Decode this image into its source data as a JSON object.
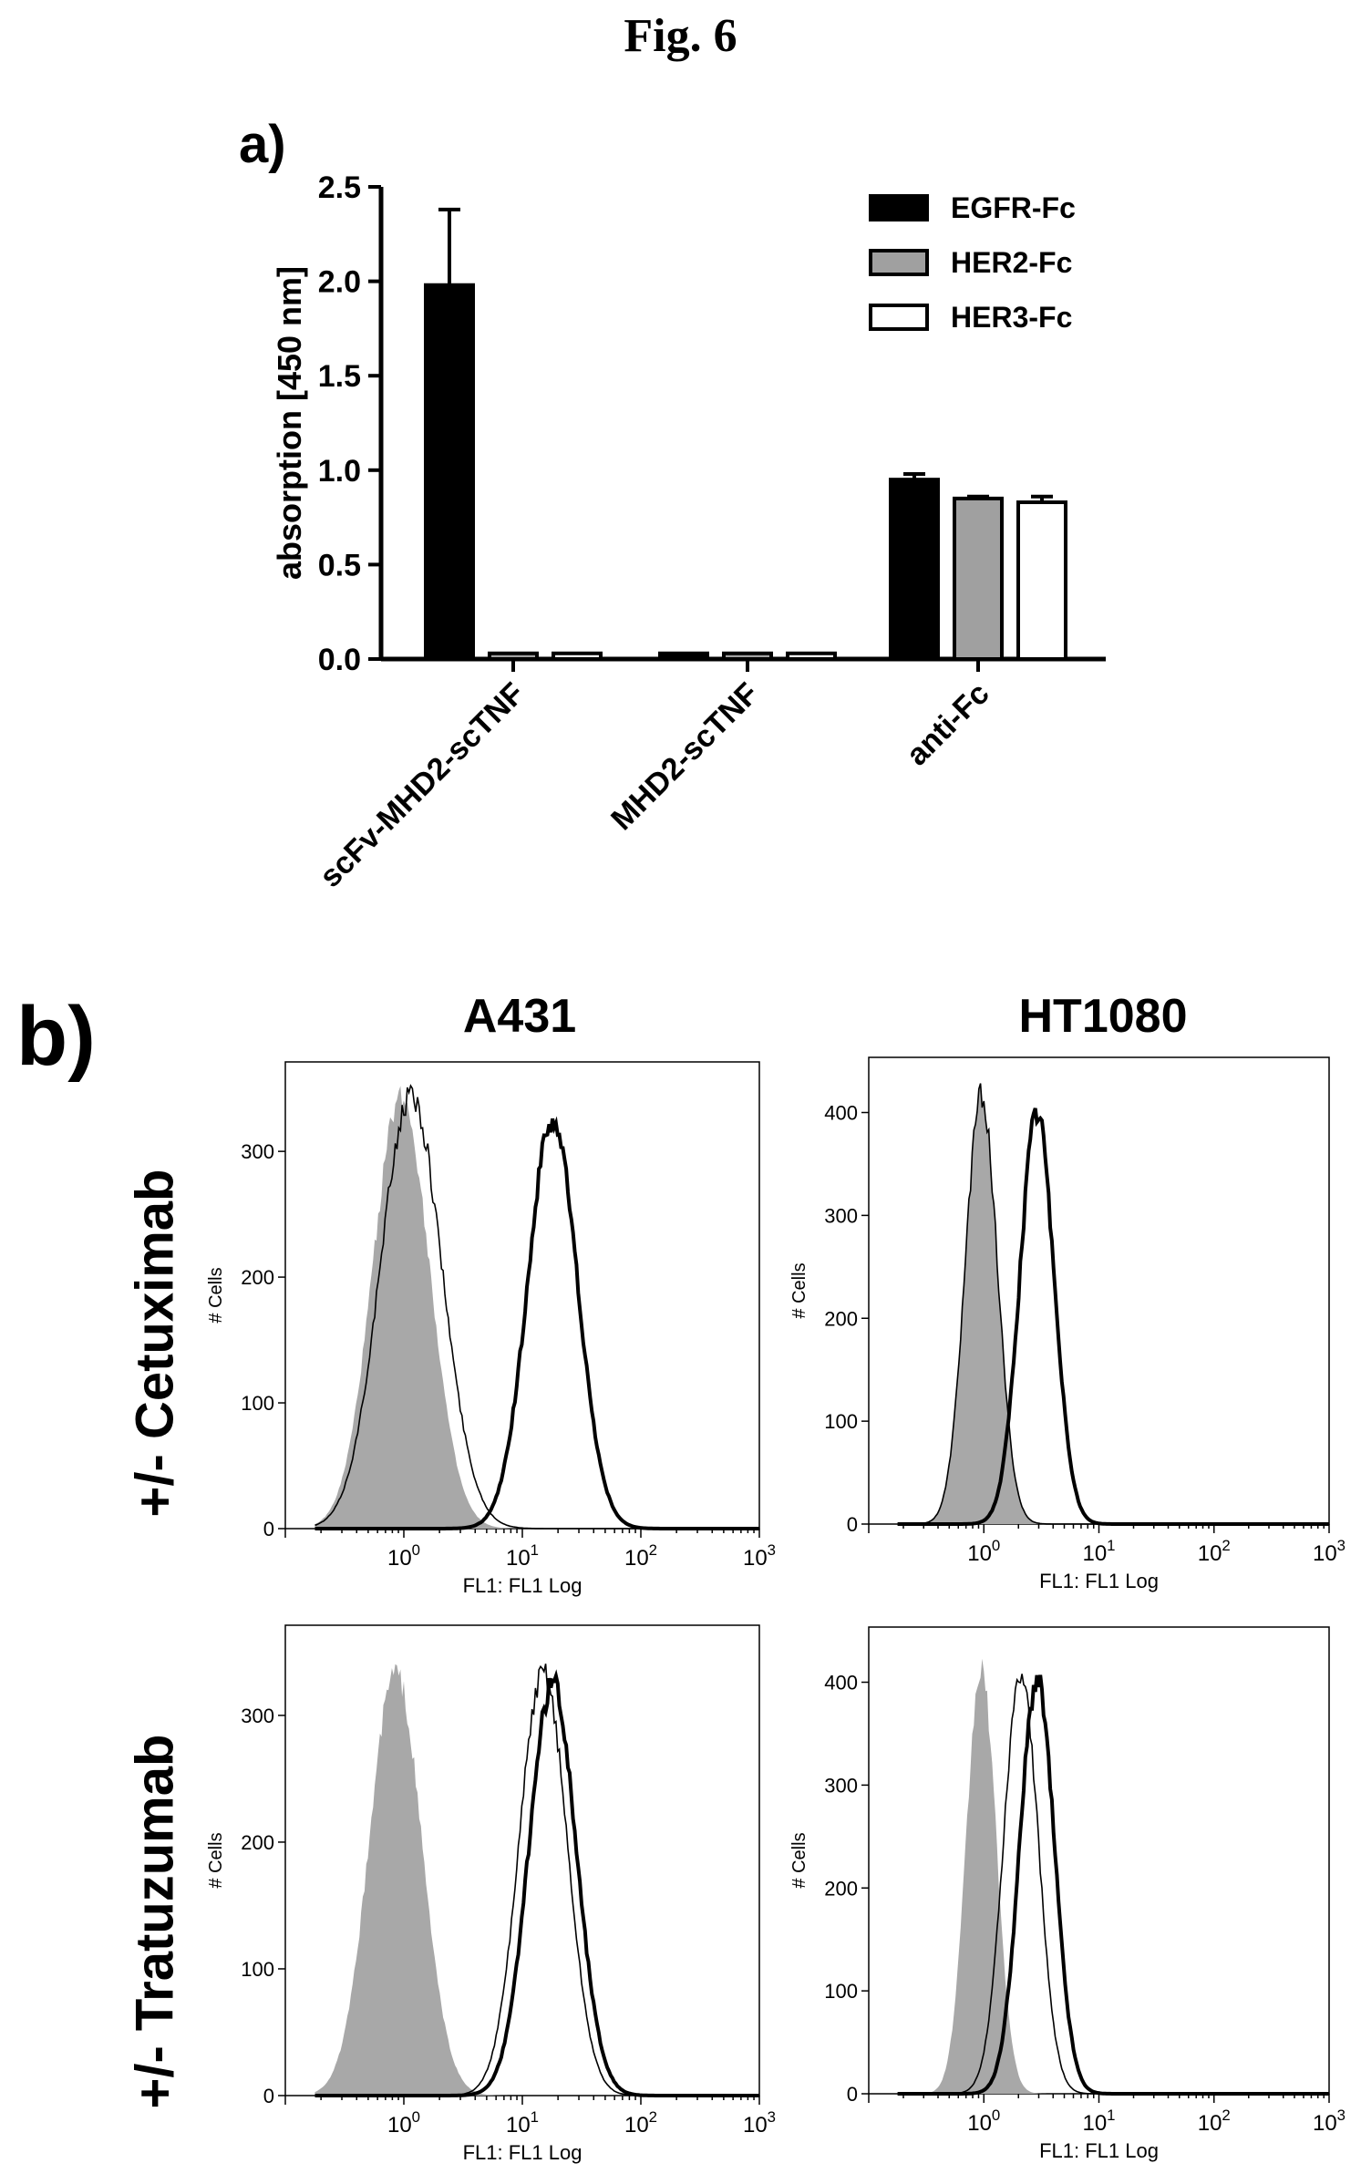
{
  "figure": {
    "title": "Fig. 6",
    "panel_a_label": "a)",
    "panel_b_label": "b)",
    "columns": [
      "A431",
      "HT1080"
    ],
    "rows": [
      "+/- Cetuximab",
      "+/- Tratuzumab"
    ]
  },
  "chart_data": [
    {
      "type": "bar",
      "panel": "a)",
      "categories": [
        "scFv-MHD2-scTNF",
        "MHD2-scTNF",
        "anti-Fc"
      ],
      "ylabel": "absorption [450 nm]",
      "ylim": [
        0,
        2.5
      ],
      "yticks": [
        "0.0",
        "0.5",
        "1.0",
        "1.5",
        "2.0",
        "2.5"
      ],
      "legend": "top-right",
      "series": [
        {
          "name": "EGFR-Fc",
          "color": "#000000",
          "values": [
            1.98,
            0.03,
            0.95
          ],
          "errors": [
            0.4,
            0.0,
            0.03
          ]
        },
        {
          "name": "HER2-Fc",
          "color": "#a0a0a0",
          "values": [
            0.03,
            0.03,
            0.85
          ],
          "errors": [
            0.0,
            0.0,
            0.01
          ]
        },
        {
          "name": "HER3-Fc",
          "color": "#ffffff",
          "values": [
            0.03,
            0.03,
            0.83
          ],
          "errors": [
            0.0,
            0.0,
            0.03
          ]
        }
      ]
    },
    {
      "type": "area",
      "panel": "A431 +/- Cetuximab",
      "xlabel": "FL1: FL1 Log",
      "ylabel": "# Cells",
      "xscale": "log",
      "xlim": [
        0.1,
        1000
      ],
      "xticks": [
        "10^0",
        "10^1",
        "10^2",
        "10^3"
      ],
      "ylim": [
        0,
        360
      ],
      "yticks": [
        "0",
        "100",
        "200",
        "300"
      ],
      "series": [
        {
          "style": "filled-gray",
          "peak_x": 0.95,
          "peak_y": 355,
          "width": 0.24
        },
        {
          "style": "thin-line",
          "peak_x": 1.15,
          "peak_y": 355,
          "width": 0.26
        },
        {
          "style": "thick-line",
          "peak_x": 18,
          "peak_y": 335,
          "width": 0.21
        }
      ]
    },
    {
      "type": "area",
      "panel": "HT1080 +/- Cetuximab",
      "xlabel": "FL1: FL1 Log",
      "ylabel": "# Cells",
      "xscale": "log",
      "xlim": [
        0.1,
        1000
      ],
      "xticks": [
        "10^0",
        "10^1",
        "10^2",
        "10^3"
      ],
      "ylim": [
        0,
        440
      ],
      "yticks": [
        "0",
        "100",
        "200",
        "300",
        "400"
      ],
      "series": [
        {
          "style": "filled-gray",
          "peak_x": 0.95,
          "peak_y": 430,
          "width": 0.14
        },
        {
          "style": "thin-line",
          "peak_x": 0.95,
          "peak_y": 430,
          "width": 0.14
        },
        {
          "style": "thick-line",
          "peak_x": 2.9,
          "peak_y": 410,
          "width": 0.15
        }
      ]
    },
    {
      "type": "area",
      "panel": "A431 +/- Tratuzumab",
      "xlabel": "FL1: FL1 Log",
      "ylabel": "# Cells",
      "xscale": "log",
      "xlim": [
        0.1,
        1000
      ],
      "xticks": [
        "10^0",
        "10^1",
        "10^2",
        "10^3"
      ],
      "ylim": [
        0,
        360
      ],
      "yticks": [
        "0",
        "100",
        "200",
        "300"
      ],
      "series": [
        {
          "style": "filled-gray",
          "peak_x": 0.85,
          "peak_y": 345,
          "width": 0.22
        },
        {
          "style": "thin-line",
          "peak_x": 15,
          "peak_y": 345,
          "width": 0.2
        },
        {
          "style": "thick-line",
          "peak_x": 18,
          "peak_y": 335,
          "width": 0.2
        }
      ]
    },
    {
      "type": "area",
      "panel": "HT1080 +/- Tratuzumab",
      "xlabel": "FL1: FL1 Log",
      "ylabel": "# Cells",
      "xscale": "log",
      "xlim": [
        0.1,
        1000
      ],
      "xticks": [
        "10^0",
        "10^1",
        "10^2",
        "10^3"
      ],
      "ylim": [
        0,
        440
      ],
      "yticks": [
        "0",
        "100",
        "200",
        "300",
        "400"
      ],
      "series": [
        {
          "style": "filled-gray",
          "peak_x": 0.95,
          "peak_y": 425,
          "width": 0.13
        },
        {
          "style": "thin-line",
          "peak_x": 2.1,
          "peak_y": 425,
          "width": 0.15
        },
        {
          "style": "thick-line",
          "peak_x": 2.9,
          "peak_y": 415,
          "width": 0.15
        }
      ]
    }
  ]
}
